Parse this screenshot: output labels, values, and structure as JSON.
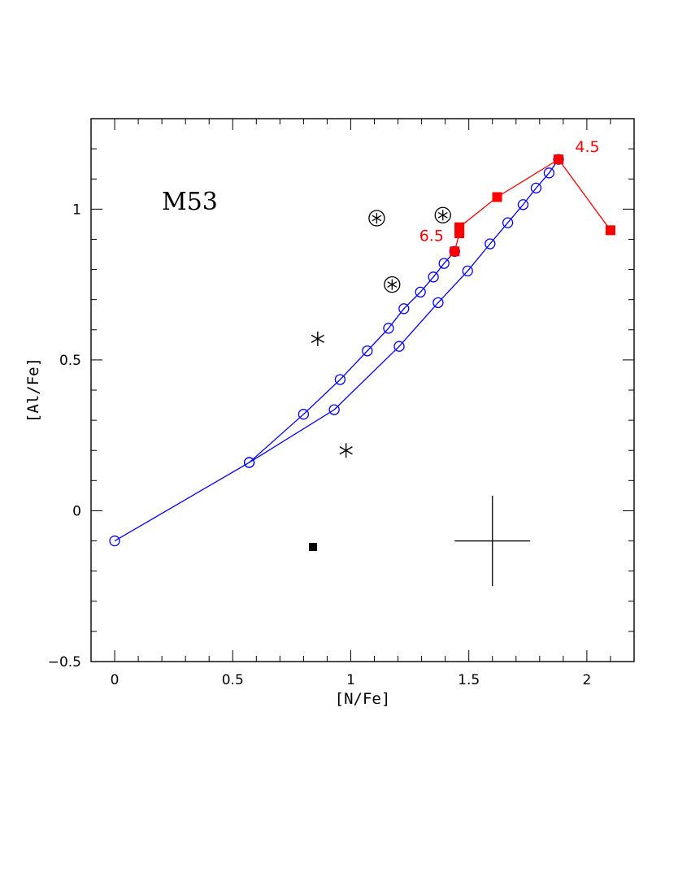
{
  "chart_data": {
    "type": "scatter",
    "title": "M53",
    "xlabel": "[N/Fe]",
    "ylabel": "[Al/Fe]",
    "xlim": [
      -0.1,
      2.2
    ],
    "ylim": [
      -0.5,
      1.3
    ],
    "x_ticks": [
      0,
      0.5,
      1,
      1.5,
      2
    ],
    "x_tick_labels": [
      "0",
      "0.5",
      "1",
      "1.5",
      "2"
    ],
    "y_ticks": [
      -0.5,
      0,
      0.5,
      1
    ],
    "y_tick_labels": [
      "−0.5",
      "0",
      "0.5",
      "1"
    ],
    "grid": false,
    "colors": {
      "blue": "#0000ff",
      "red": "#ff0000",
      "black": "#000000"
    },
    "series": [
      {
        "style": "blue-line-open-circles",
        "x": [
          0.0,
          0.57,
          0.8,
          0.955,
          1.07,
          1.16,
          1.225,
          1.295,
          1.35,
          1.395,
          1.44
        ],
        "y": [
          -0.1,
          0.16,
          0.32,
          0.435,
          0.53,
          0.605,
          0.67,
          0.725,
          0.775,
          0.82,
          0.86
        ]
      },
      {
        "style": "blue-line-open-circles",
        "x": [
          0.57,
          0.93,
          1.205,
          1.37,
          1.495,
          1.59,
          1.665,
          1.73,
          1.785,
          1.84,
          1.88
        ],
        "y": [
          0.16,
          0.335,
          0.545,
          0.69,
          0.795,
          0.885,
          0.955,
          1.015,
          1.07,
          1.12,
          1.165
        ]
      },
      {
        "style": "red-line-filled-squares",
        "x": [
          1.44,
          1.46,
          1.46,
          1.46,
          1.62,
          1.88,
          2.1
        ],
        "y": [
          0.86,
          0.92,
          0.93,
          0.94,
          1.04,
          1.165,
          0.93
        ]
      },
      {
        "style": "black-circled-stars",
        "x": [
          1.11,
          1.175,
          1.39
        ],
        "y": [
          0.97,
          0.75,
          0.98
        ]
      },
      {
        "style": "black-stars",
        "x": [
          0.86,
          0.98
        ],
        "y": [
          0.57,
          0.2
        ]
      },
      {
        "style": "black-filled-square",
        "x": [
          0.84
        ],
        "y": [
          -0.12
        ]
      }
    ],
    "error_bar": {
      "x": 1.6,
      "y": -0.1,
      "xerr": 0.16,
      "yerr": 0.15
    },
    "annotations": [
      {
        "text": "4.5",
        "x": 1.95,
        "y": 1.19
      },
      {
        "text": "6.5",
        "x": 1.29,
        "y": 0.895
      }
    ]
  }
}
